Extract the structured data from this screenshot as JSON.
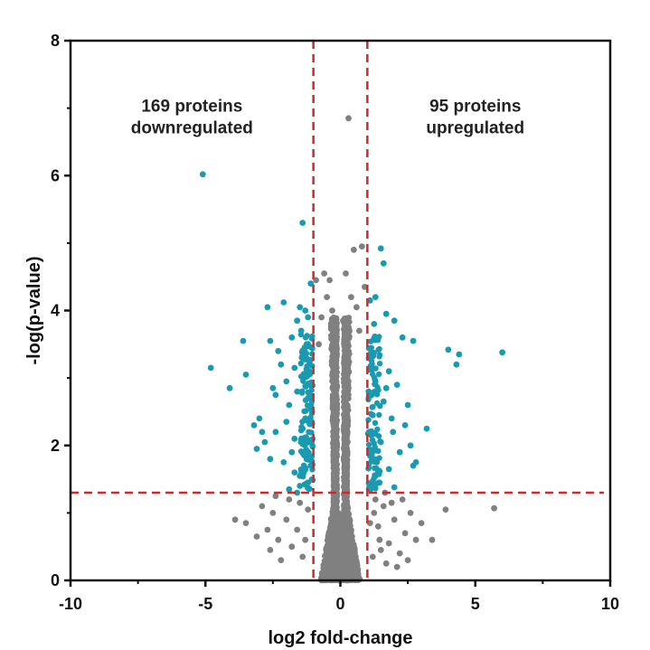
{
  "chart_data": {
    "type": "scatter",
    "title": "",
    "xlabel": "log2 fold-change",
    "ylabel": "-log(p-value)",
    "xlim": [
      -10,
      10
    ],
    "ylim": [
      0,
      8
    ],
    "x_ticks": [
      "-10",
      "-5",
      "0",
      "5",
      "10"
    ],
    "y_ticks": [
      "0",
      "2",
      "4",
      "6",
      "8"
    ],
    "grid": false,
    "thresholds": {
      "fold_change": [
        -1,
        1
      ],
      "neg_log_p": 1.3,
      "line_color": "#d62728"
    },
    "annotations": [
      {
        "lines": [
          "169 proteins",
          "downregulated"
        ],
        "x": -5.5,
        "y": 6.95
      },
      {
        "lines": [
          "95 proteins",
          "upregulated"
        ],
        "x": 5.0,
        "y": 6.95
      }
    ],
    "colors": {
      "significant": "#1a9ab0",
      "not_significant": "#808080"
    },
    "series": [
      {
        "name": "",
        "color": "#1a9ab0",
        "points": [
          [
            -5.1,
            6.02
          ],
          [
            -1.4,
            5.3
          ],
          [
            -4.8,
            3.15
          ],
          [
            -3.6,
            3.55
          ],
          [
            -3.5,
            3.05
          ],
          [
            -4.1,
            2.85
          ],
          [
            -2.7,
            4.05
          ],
          [
            -2.1,
            4.12
          ],
          [
            -1.5,
            4.05
          ],
          [
            -2.6,
            3.55
          ],
          [
            -2.2,
            3.2
          ],
          [
            -2.5,
            2.85
          ],
          [
            -1.2,
            3.9
          ],
          [
            -1.6,
            3.85
          ],
          [
            -2.0,
            2.95
          ],
          [
            -3.0,
            2.4
          ],
          [
            -3.2,
            2.3
          ],
          [
            -2.8,
            2.05
          ],
          [
            -3.1,
            1.95
          ],
          [
            -2.4,
            2.2
          ],
          [
            -1.8,
            1.9
          ],
          [
            -1.3,
            2.4
          ],
          [
            -2.1,
            1.75
          ],
          [
            -1.5,
            1.55
          ],
          [
            -1.2,
            1.45
          ],
          [
            -1.7,
            2.1
          ],
          [
            -1.9,
            2.6
          ],
          [
            -1.4,
            3.3
          ],
          [
            -1.1,
            4.4
          ],
          [
            -1.3,
            4.0
          ],
          [
            -1.8,
            3.6
          ],
          [
            -2.3,
            3.4
          ],
          [
            -1.6,
            2.8
          ],
          [
            -1.2,
            2.7
          ],
          [
            -1.4,
            2.25
          ],
          [
            -1.7,
            1.6
          ],
          [
            -1.1,
            1.7
          ],
          [
            -2.6,
            1.8
          ],
          [
            -1.9,
            1.35
          ],
          [
            -1.5,
            1.4
          ],
          [
            -2.0,
            2.35
          ],
          [
            -1.15,
            3.1
          ],
          [
            -1.25,
            3.5
          ],
          [
            -1.35,
            1.9
          ],
          [
            -2.4,
            2.75
          ],
          [
            -1.7,
            3.15
          ],
          [
            -1.05,
            2.5
          ],
          [
            -1.45,
            3.7
          ],
          [
            -2.9,
            2.2
          ],
          [
            -1.6,
            1.3
          ],
          [
            1.5,
            4.92
          ],
          [
            1.6,
            4.7
          ],
          [
            1.3,
            4.2
          ],
          [
            1.7,
            3.95
          ],
          [
            1.1,
            4.15
          ],
          [
            1.4,
            3.6
          ],
          [
            2.0,
            3.85
          ],
          [
            2.3,
            3.6
          ],
          [
            2.7,
            3.55
          ],
          [
            1.8,
            3.1
          ],
          [
            1.3,
            2.95
          ],
          [
            2.1,
            2.9
          ],
          [
            1.6,
            2.65
          ],
          [
            2.5,
            2.6
          ],
          [
            1.2,
            2.45
          ],
          [
            1.9,
            2.4
          ],
          [
            2.4,
            2.3
          ],
          [
            3.2,
            2.25
          ],
          [
            1.5,
            2.05
          ],
          [
            2.2,
            1.9
          ],
          [
            2.8,
            1.75
          ],
          [
            2.7,
            1.7
          ],
          [
            1.8,
            1.65
          ],
          [
            1.3,
            1.55
          ],
          [
            1.1,
            1.85
          ],
          [
            1.2,
            3.35
          ],
          [
            1.05,
            2.8
          ],
          [
            1.15,
            2.15
          ],
          [
            1.45,
            1.45
          ],
          [
            2.0,
            1.38
          ],
          [
            4.0,
            3.42
          ],
          [
            4.4,
            3.35
          ],
          [
            4.3,
            3.2
          ],
          [
            6.0,
            3.38
          ],
          [
            1.25,
            3.8
          ],
          [
            1.35,
            1.75
          ],
          [
            2.6,
            2.0
          ],
          [
            1.7,
            2.85
          ],
          [
            1.1,
            1.35
          ],
          [
            1.95,
            2.2
          ]
        ]
      },
      {
        "name": "",
        "color": "#808080",
        "points": [
          [
            0.3,
            6.85
          ],
          [
            0.5,
            4.9
          ],
          [
            0.8,
            4.95
          ],
          [
            0.2,
            4.55
          ],
          [
            -0.6,
            4.55
          ],
          [
            -0.9,
            4.45
          ],
          [
            -0.4,
            4.45
          ],
          [
            0.9,
            4.35
          ],
          [
            -0.5,
            4.2
          ],
          [
            0.4,
            4.2
          ],
          [
            -0.3,
            4.0
          ],
          [
            0.6,
            4.05
          ],
          [
            -0.7,
            3.9
          ],
          [
            0.1,
            3.85
          ],
          [
            -0.2,
            3.7
          ],
          [
            0.7,
            3.7
          ],
          [
            -0.8,
            3.5
          ],
          [
            0.3,
            3.6
          ],
          [
            -3.9,
            0.9
          ],
          [
            -3.5,
            0.85
          ],
          [
            -2.9,
            1.1
          ],
          [
            -2.7,
            0.75
          ],
          [
            -2.5,
            1.0
          ],
          [
            -2.3,
            0.6
          ],
          [
            -2.0,
            0.9
          ],
          [
            -1.8,
            0.5
          ],
          [
            -1.6,
            0.75
          ],
          [
            -1.4,
            0.35
          ],
          [
            -1.2,
            1.05
          ],
          [
            -2.2,
            0.3
          ],
          [
            -1.9,
            1.2
          ],
          [
            -1.5,
            1.15
          ],
          [
            -2.6,
            0.45
          ],
          [
            -3.1,
            0.65
          ],
          [
            -1.3,
            0.6
          ],
          [
            -2.4,
            1.25
          ],
          [
            1.2,
            0.35
          ],
          [
            1.4,
            0.8
          ],
          [
            1.6,
            1.1
          ],
          [
            1.8,
            0.55
          ],
          [
            2.0,
            0.9
          ],
          [
            2.2,
            0.4
          ],
          [
            2.4,
            0.7
          ],
          [
            2.6,
            1.0
          ],
          [
            1.3,
            1.2
          ],
          [
            1.7,
            0.25
          ],
          [
            1.9,
            1.15
          ],
          [
            2.3,
            1.2
          ],
          [
            2.8,
            0.6
          ],
          [
            1.5,
            0.45
          ],
          [
            2.1,
            0.2
          ],
          [
            1.1,
            0.85
          ],
          [
            2.5,
            0.3
          ],
          [
            1.45,
            0.6
          ],
          [
            3.9,
            1.05
          ],
          [
            5.7,
            1.07
          ],
          [
            3.4,
            0.6
          ],
          [
            3.0,
            0.85
          ],
          [
            1.25,
            1.0
          ],
          [
            1.65,
            1.3
          ]
        ]
      }
    ]
  }
}
